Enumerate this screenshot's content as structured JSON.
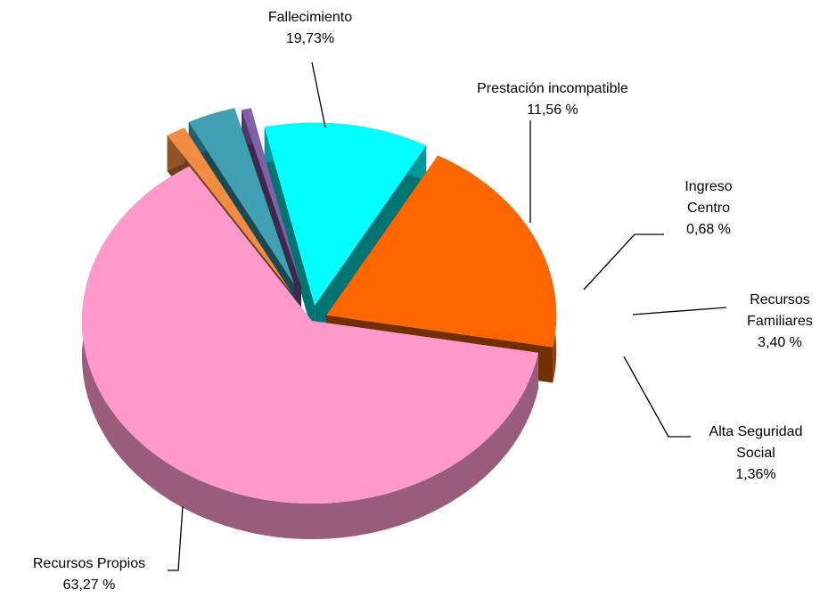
{
  "chart_data": {
    "type": "pie",
    "categories": [
      "Recursos Propios",
      "Fallecimiento",
      "Prestación incompatible",
      "Ingreso Centro",
      "Recursos Familiares",
      "Alta Seguridad Social"
    ],
    "values": [
      63.27,
      19.73,
      11.56,
      0.68,
      3.4,
      1.36
    ],
    "value_labels": [
      "63,27 %",
      "19,73%",
      "11,56 %",
      "0,68 %",
      "3,40 %",
      "1,36%"
    ],
    "colors": [
      "#ff99cc",
      "#ff6600",
      "#00ffff",
      "#8060a8",
      "#40a0b4",
      "#f08c44"
    ]
  }
}
